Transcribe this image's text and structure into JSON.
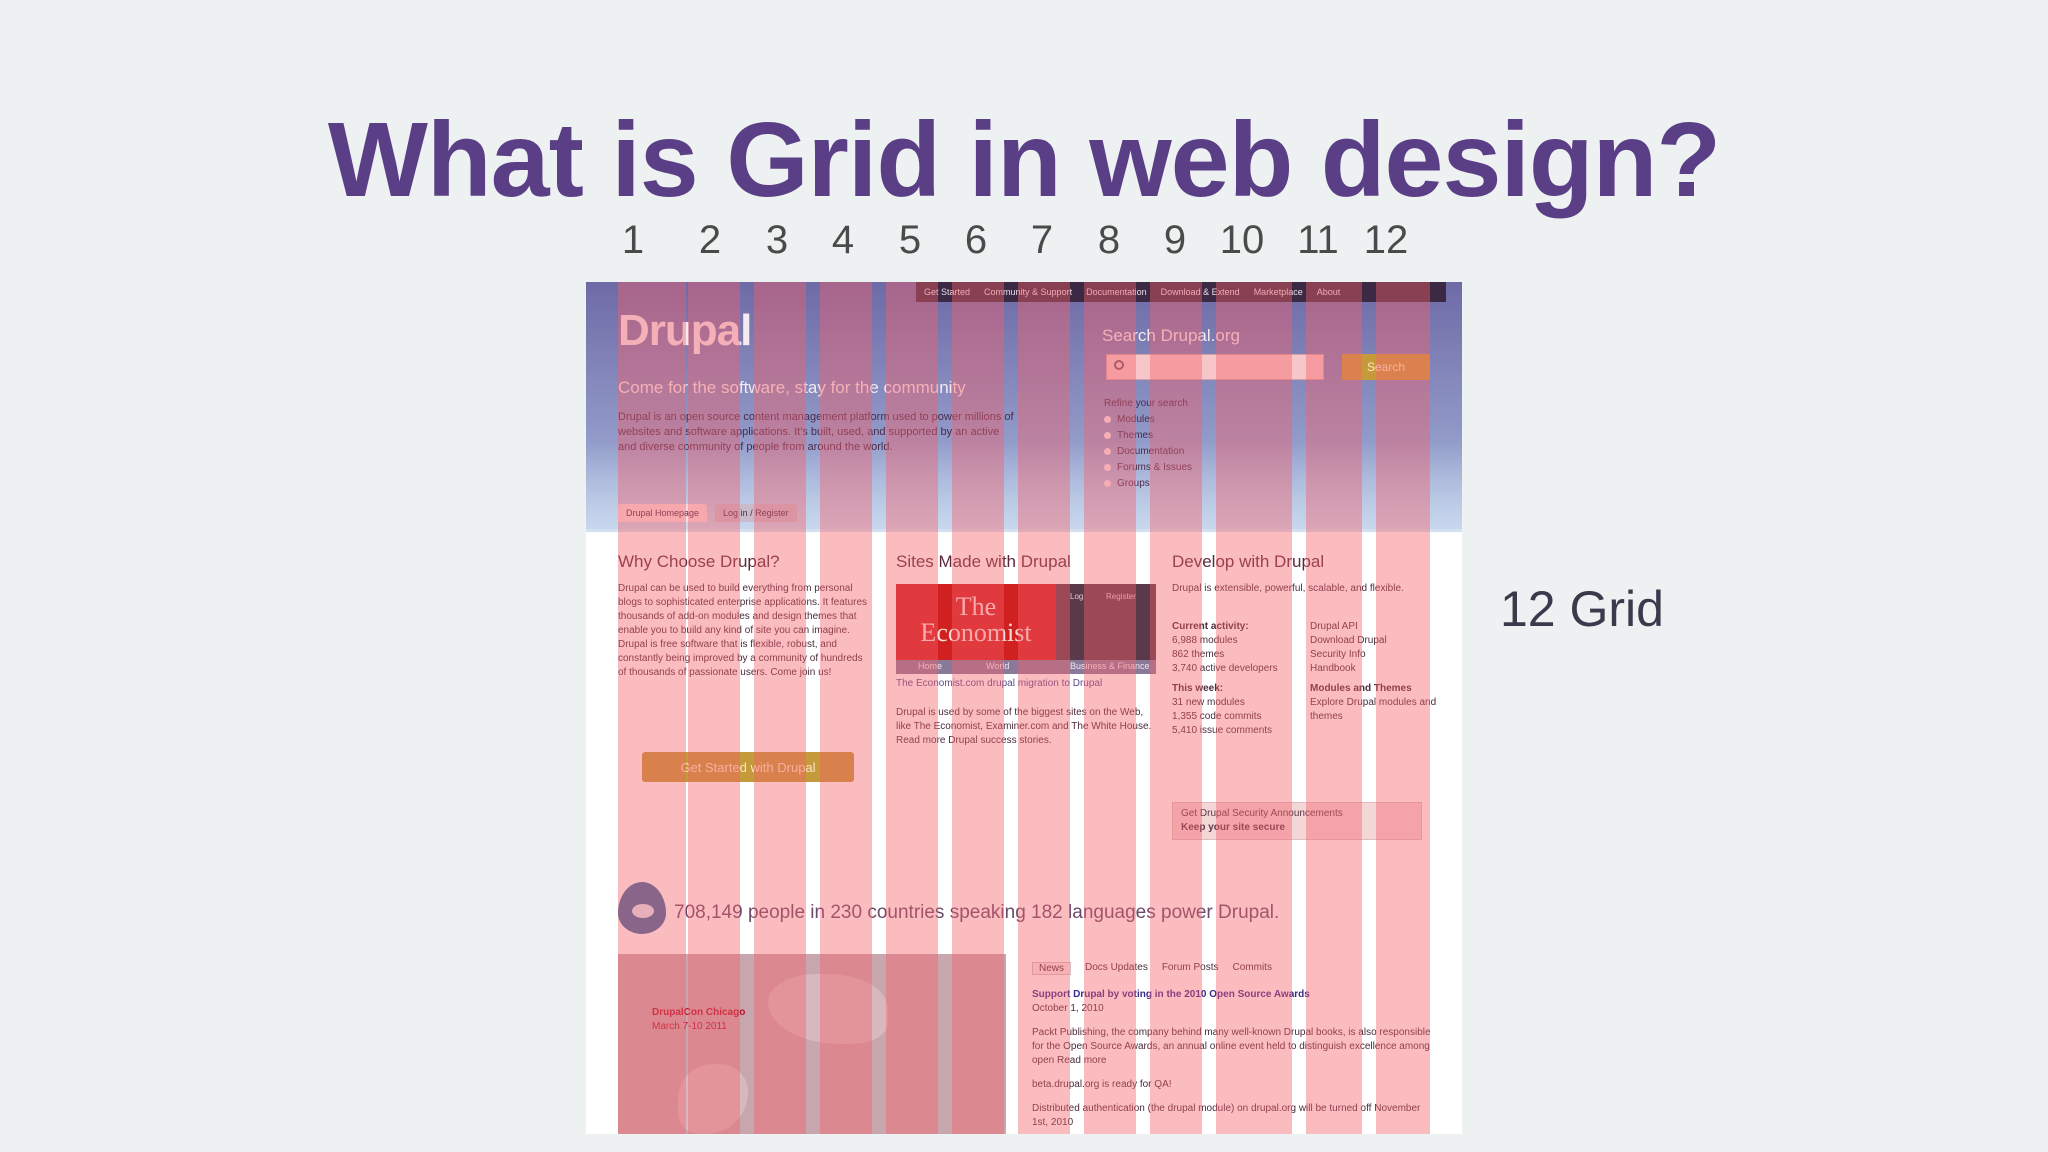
{
  "slide": {
    "title": "What is Grid in web design?",
    "column_numbers": [
      "1",
      "2",
      "3",
      "4",
      "5",
      "6",
      "7",
      "8",
      "9",
      "10",
      "11",
      "12"
    ],
    "grid_label": "12 Grid"
  },
  "overlay": {
    "column_color": "#f55f69",
    "column_count": 12
  },
  "drupal": {
    "topnav": [
      "Get Started",
      "Community & Support",
      "Documentation",
      "Download & Extend",
      "Marketplace",
      "About"
    ],
    "logo": "Drupal",
    "tagline": "Come for the software, stay for the community",
    "intro": "Drupal is an open source content management platform used to power millions of websites and software applications. It's built, used, and supported by an active and diverse community of people from around the world.",
    "search": {
      "label": "Search Drupal.org",
      "button": "Search",
      "refine_label": "Refine your search",
      "options": [
        "Modules",
        "Themes",
        "Documentation",
        "Forums & Issues",
        "Groups"
      ]
    },
    "tabs": [
      "Drupal Homepage",
      "Log in / Register"
    ],
    "why": {
      "heading": "Why Choose Drupal?",
      "body": "Drupal can be used to build everything from personal blogs to sophisticated enterprise applications. It features thousands of add-on modules and design themes that enable you to build any kind of site you can imagine. Drupal is free software that is flexible, robust, and constantly being improved by a community of hundreds of thousands of passionate users. Come join us!",
      "cta": "Get Started with Drupal"
    },
    "sites": {
      "heading": "Sites Made with Drupal",
      "logo_line1": "The",
      "logo_line2": "Economist",
      "side_links": [
        "Log",
        "Register"
      ],
      "nav": [
        "Home",
        "World",
        "Business & Finance"
      ],
      "caption": "The Economist.com drupal migration to Drupal",
      "body": "Drupal is used by some of the biggest sites on the Web, like The Economist, Examiner.com and The White House. Read more Drupal success stories."
    },
    "develop": {
      "heading": "Develop with Drupal",
      "body": "Drupal is extensible, powerful, scalable, and flexible.",
      "activity_label": "Current activity:",
      "activity": [
        "6,988 modules",
        "862 themes",
        "3,740 active developers"
      ],
      "week_label": "This week:",
      "week": [
        "31 new modules",
        "1,355 code commits",
        "5,410 issue comments"
      ],
      "links": [
        "Drupal API",
        "Download Drupal",
        "Security Info",
        "Handbook"
      ],
      "modules_label": "Modules and Themes",
      "modules_body": "Explore Drupal modules and themes",
      "callout_line1": "Get Drupal Security Announcements",
      "callout_line2": "Keep your site secure"
    },
    "stats": "708,149 people in 230 countries speaking 182 languages power Drupal.",
    "event": {
      "name": "DrupalCon Chicago",
      "date": "March 7-10 2011"
    },
    "news_tabs": [
      "News",
      "Docs Updates",
      "Forum Posts",
      "Commits"
    ],
    "news": {
      "headline": "Support Drupal by voting in the 2010 Open Source Awards",
      "date": "October 1, 2010",
      "body": "Packt Publishing, the company behind many well-known Drupal books, is also responsible for the Open Source Awards, an annual online event held to distinguish excellence among open Read more",
      "item2": "beta.drupal.org is ready for QA!",
      "item3": "Distributed authentication (the drupal module) on drupal.org will be turned off November 1st, 2010"
    }
  }
}
